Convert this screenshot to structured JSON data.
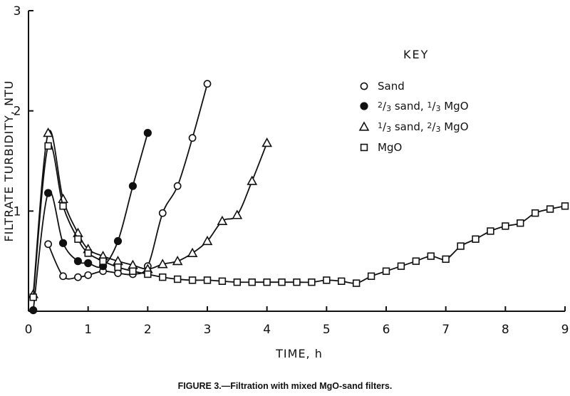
{
  "chart_data": {
    "type": "line",
    "title": "FIGURE 3.—Filtration with mixed MgO-sand filters.",
    "xlabel": "TIME, h",
    "ylabel": "FILTRATE TURBIDITY, NTU",
    "xlim": [
      0,
      9
    ],
    "ylim": [
      0,
      3
    ],
    "xticks": [
      "0",
      "1",
      "2",
      "3",
      "4",
      "5",
      "6",
      "7",
      "8",
      "9"
    ],
    "yticks": [
      "1",
      "2",
      "3"
    ],
    "grid": false,
    "legend_position": "top-right",
    "legend_title": "KEY",
    "series": [
      {
        "name": "Sand",
        "marker": "circle-open",
        "x": [
          0.33,
          0.58,
          0.83,
          1.0,
          1.25,
          1.5,
          1.75,
          2.0,
          2.25,
          2.5,
          2.75,
          3.0
        ],
        "y": [
          0.67,
          0.35,
          0.34,
          0.36,
          0.4,
          0.38,
          0.37,
          0.45,
          0.98,
          1.25,
          1.73,
          2.27
        ]
      },
      {
        "name": "2/3 sand, 1/3 MgO",
        "marker": "circle-filled",
        "x": [
          0.08,
          0.33,
          0.58,
          0.83,
          1.0,
          1.25,
          1.5,
          1.75,
          2.0
        ],
        "y": [
          0.01,
          1.18,
          0.68,
          0.5,
          0.48,
          0.45,
          0.7,
          1.25,
          1.78
        ]
      },
      {
        "name": "1/3 sand, 2/3 MgO",
        "marker": "triangle-open",
        "x": [
          0.08,
          0.33,
          0.58,
          0.83,
          1.0,
          1.25,
          1.5,
          1.75,
          2.0,
          2.25,
          2.5,
          2.75,
          3.0,
          3.25,
          3.5,
          3.75,
          4.0
        ],
        "y": [
          0.17,
          1.78,
          1.12,
          0.78,
          0.62,
          0.55,
          0.5,
          0.46,
          0.42,
          0.47,
          0.5,
          0.58,
          0.7,
          0.9,
          0.96,
          1.3,
          1.68
        ]
      },
      {
        "name": "MgO",
        "marker": "square-open",
        "x": [
          0.08,
          0.33,
          0.58,
          0.83,
          1.0,
          1.25,
          1.5,
          1.75,
          2.0,
          2.25,
          2.5,
          2.75,
          3.0,
          3.25,
          3.5,
          3.75,
          4.0,
          4.25,
          4.5,
          4.75,
          5.0,
          5.25,
          5.5,
          5.75,
          6.0,
          6.25,
          6.5,
          6.75,
          7.0,
          7.25,
          7.5,
          7.75,
          8.0,
          8.25,
          8.5,
          8.75,
          9.0
        ],
        "y": [
          0.14,
          1.65,
          1.05,
          0.72,
          0.58,
          0.5,
          0.44,
          0.4,
          0.37,
          0.34,
          0.32,
          0.31,
          0.31,
          0.3,
          0.29,
          0.29,
          0.29,
          0.29,
          0.29,
          0.29,
          0.31,
          0.3,
          0.28,
          0.35,
          0.4,
          0.45,
          0.5,
          0.55,
          0.52,
          0.65,
          0.72,
          0.8,
          0.85,
          0.88,
          0.98,
          1.02,
          1.05
        ]
      }
    ]
  }
}
